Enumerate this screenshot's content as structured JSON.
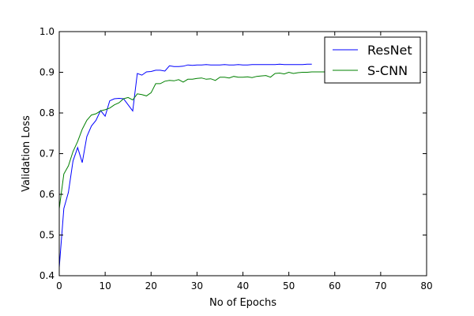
{
  "chart_data": {
    "type": "line",
    "title": "",
    "xlabel": "No of Epochs",
    "ylabel": "Validation Loss",
    "xlim": [
      0,
      80
    ],
    "ylim": [
      0.4,
      1.0
    ],
    "xticks": [
      0,
      10,
      20,
      30,
      40,
      50,
      60,
      70,
      80
    ],
    "yticks": [
      0.4,
      0.5,
      0.6,
      0.7,
      0.8,
      0.9,
      1.0
    ],
    "xtick_labels": [
      "0",
      "10",
      "20",
      "30",
      "40",
      "50",
      "60",
      "70",
      "80"
    ],
    "ytick_labels": [
      "0.4",
      "0.5",
      "0.6",
      "0.7",
      "0.8",
      "0.9",
      "1.0"
    ],
    "grid": false,
    "legend_position": "top-right",
    "series": [
      {
        "name": "ResNet",
        "color": "#0000ff",
        "x": [
          0,
          1,
          2,
          3,
          4,
          5,
          6,
          7,
          8,
          9,
          10,
          11,
          12,
          13,
          14,
          15,
          16,
          17,
          18,
          19,
          20,
          21,
          22,
          23,
          24,
          25,
          26,
          27,
          28,
          29,
          30,
          31,
          32,
          33,
          34,
          35,
          36,
          37,
          38,
          39,
          40,
          41,
          42,
          43,
          44,
          45,
          46,
          47,
          48,
          49,
          50,
          51,
          52,
          53,
          54,
          55
        ],
        "y": [
          0.42,
          0.565,
          0.605,
          0.682,
          0.715,
          0.678,
          0.742,
          0.768,
          0.782,
          0.806,
          0.792,
          0.83,
          0.835,
          0.836,
          0.835,
          0.82,
          0.805,
          0.897,
          0.893,
          0.901,
          0.902,
          0.905,
          0.905,
          0.903,
          0.916,
          0.914,
          0.914,
          0.915,
          0.918,
          0.917,
          0.918,
          0.918,
          0.919,
          0.918,
          0.918,
          0.918,
          0.919,
          0.918,
          0.918,
          0.919,
          0.918,
          0.918,
          0.919,
          0.919,
          0.919,
          0.919,
          0.919,
          0.919,
          0.92,
          0.919,
          0.919,
          0.919,
          0.919,
          0.919,
          0.92,
          0.92
        ]
      },
      {
        "name": "S-CNN",
        "color": "#008000",
        "x": [
          0,
          1,
          2,
          3,
          4,
          5,
          6,
          7,
          8,
          9,
          10,
          11,
          12,
          13,
          14,
          15,
          16,
          17,
          18,
          19,
          20,
          21,
          22,
          23,
          24,
          25,
          26,
          27,
          28,
          29,
          30,
          31,
          32,
          33,
          34,
          35,
          36,
          37,
          38,
          39,
          40,
          41,
          42,
          43,
          44,
          45,
          46,
          47,
          48,
          49,
          50,
          51,
          52,
          53,
          54,
          55,
          56,
          57,
          58,
          59,
          60
        ],
        "y": [
          0.565,
          0.65,
          0.67,
          0.705,
          0.73,
          0.76,
          0.782,
          0.795,
          0.798,
          0.805,
          0.808,
          0.812,
          0.82,
          0.825,
          0.835,
          0.838,
          0.832,
          0.847,
          0.845,
          0.842,
          0.85,
          0.872,
          0.872,
          0.878,
          0.88,
          0.879,
          0.882,
          0.876,
          0.883,
          0.883,
          0.885,
          0.886,
          0.883,
          0.884,
          0.88,
          0.888,
          0.888,
          0.886,
          0.89,
          0.888,
          0.888,
          0.889,
          0.887,
          0.89,
          0.891,
          0.892,
          0.888,
          0.897,
          0.898,
          0.896,
          0.9,
          0.897,
          0.899,
          0.9,
          0.9,
          0.901,
          0.901,
          0.901,
          0.901,
          0.901,
          0.902
        ]
      }
    ]
  }
}
